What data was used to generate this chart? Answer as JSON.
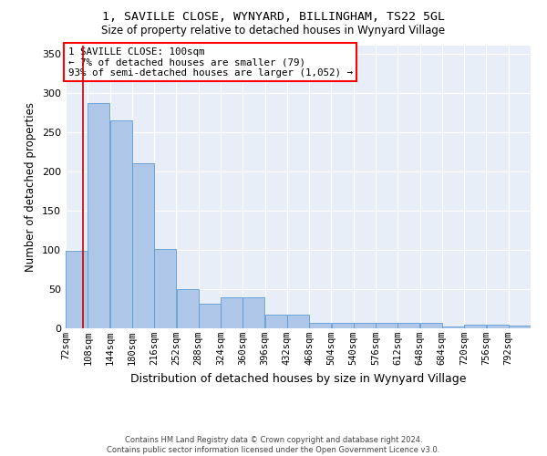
{
  "title_line1": "1, SAVILLE CLOSE, WYNYARD, BILLINGHAM, TS22 5GL",
  "title_line2": "Size of property relative to detached houses in Wynyard Village",
  "xlabel": "Distribution of detached houses by size in Wynyard Village",
  "ylabel": "Number of detached properties",
  "footer_line1": "Contains HM Land Registry data © Crown copyright and database right 2024.",
  "footer_line2": "Contains public sector information licensed under the Open Government Licence v3.0.",
  "annotation_line1": "1 SAVILLE CLOSE: 100sqm",
  "annotation_line2": "← 7% of detached houses are smaller (79)",
  "annotation_line3": "93% of semi-detached houses are larger (1,052) →",
  "bar_color": "#aec6e8",
  "bar_edge_color": "#5b9bd5",
  "marker_color": "#cc0000",
  "background_color": "#e8eef7",
  "ylim": [
    0,
    360
  ],
  "yticks": [
    0,
    50,
    100,
    150,
    200,
    250,
    300,
    350
  ],
  "bin_edges": [
    72,
    108,
    144,
    180,
    216,
    252,
    288,
    324,
    360,
    396,
    432,
    468,
    504,
    540,
    576,
    612,
    648,
    684,
    720,
    756,
    792
  ],
  "bar_heights": [
    99,
    287,
    265,
    210,
    101,
    50,
    31,
    40,
    40,
    17,
    17,
    7,
    7,
    7,
    7,
    7,
    7,
    2,
    5,
    5,
    3
  ],
  "property_size": 100,
  "xlim": [
    72,
    828
  ],
  "fig_width": 6.0,
  "fig_height": 5.0,
  "dpi": 100
}
